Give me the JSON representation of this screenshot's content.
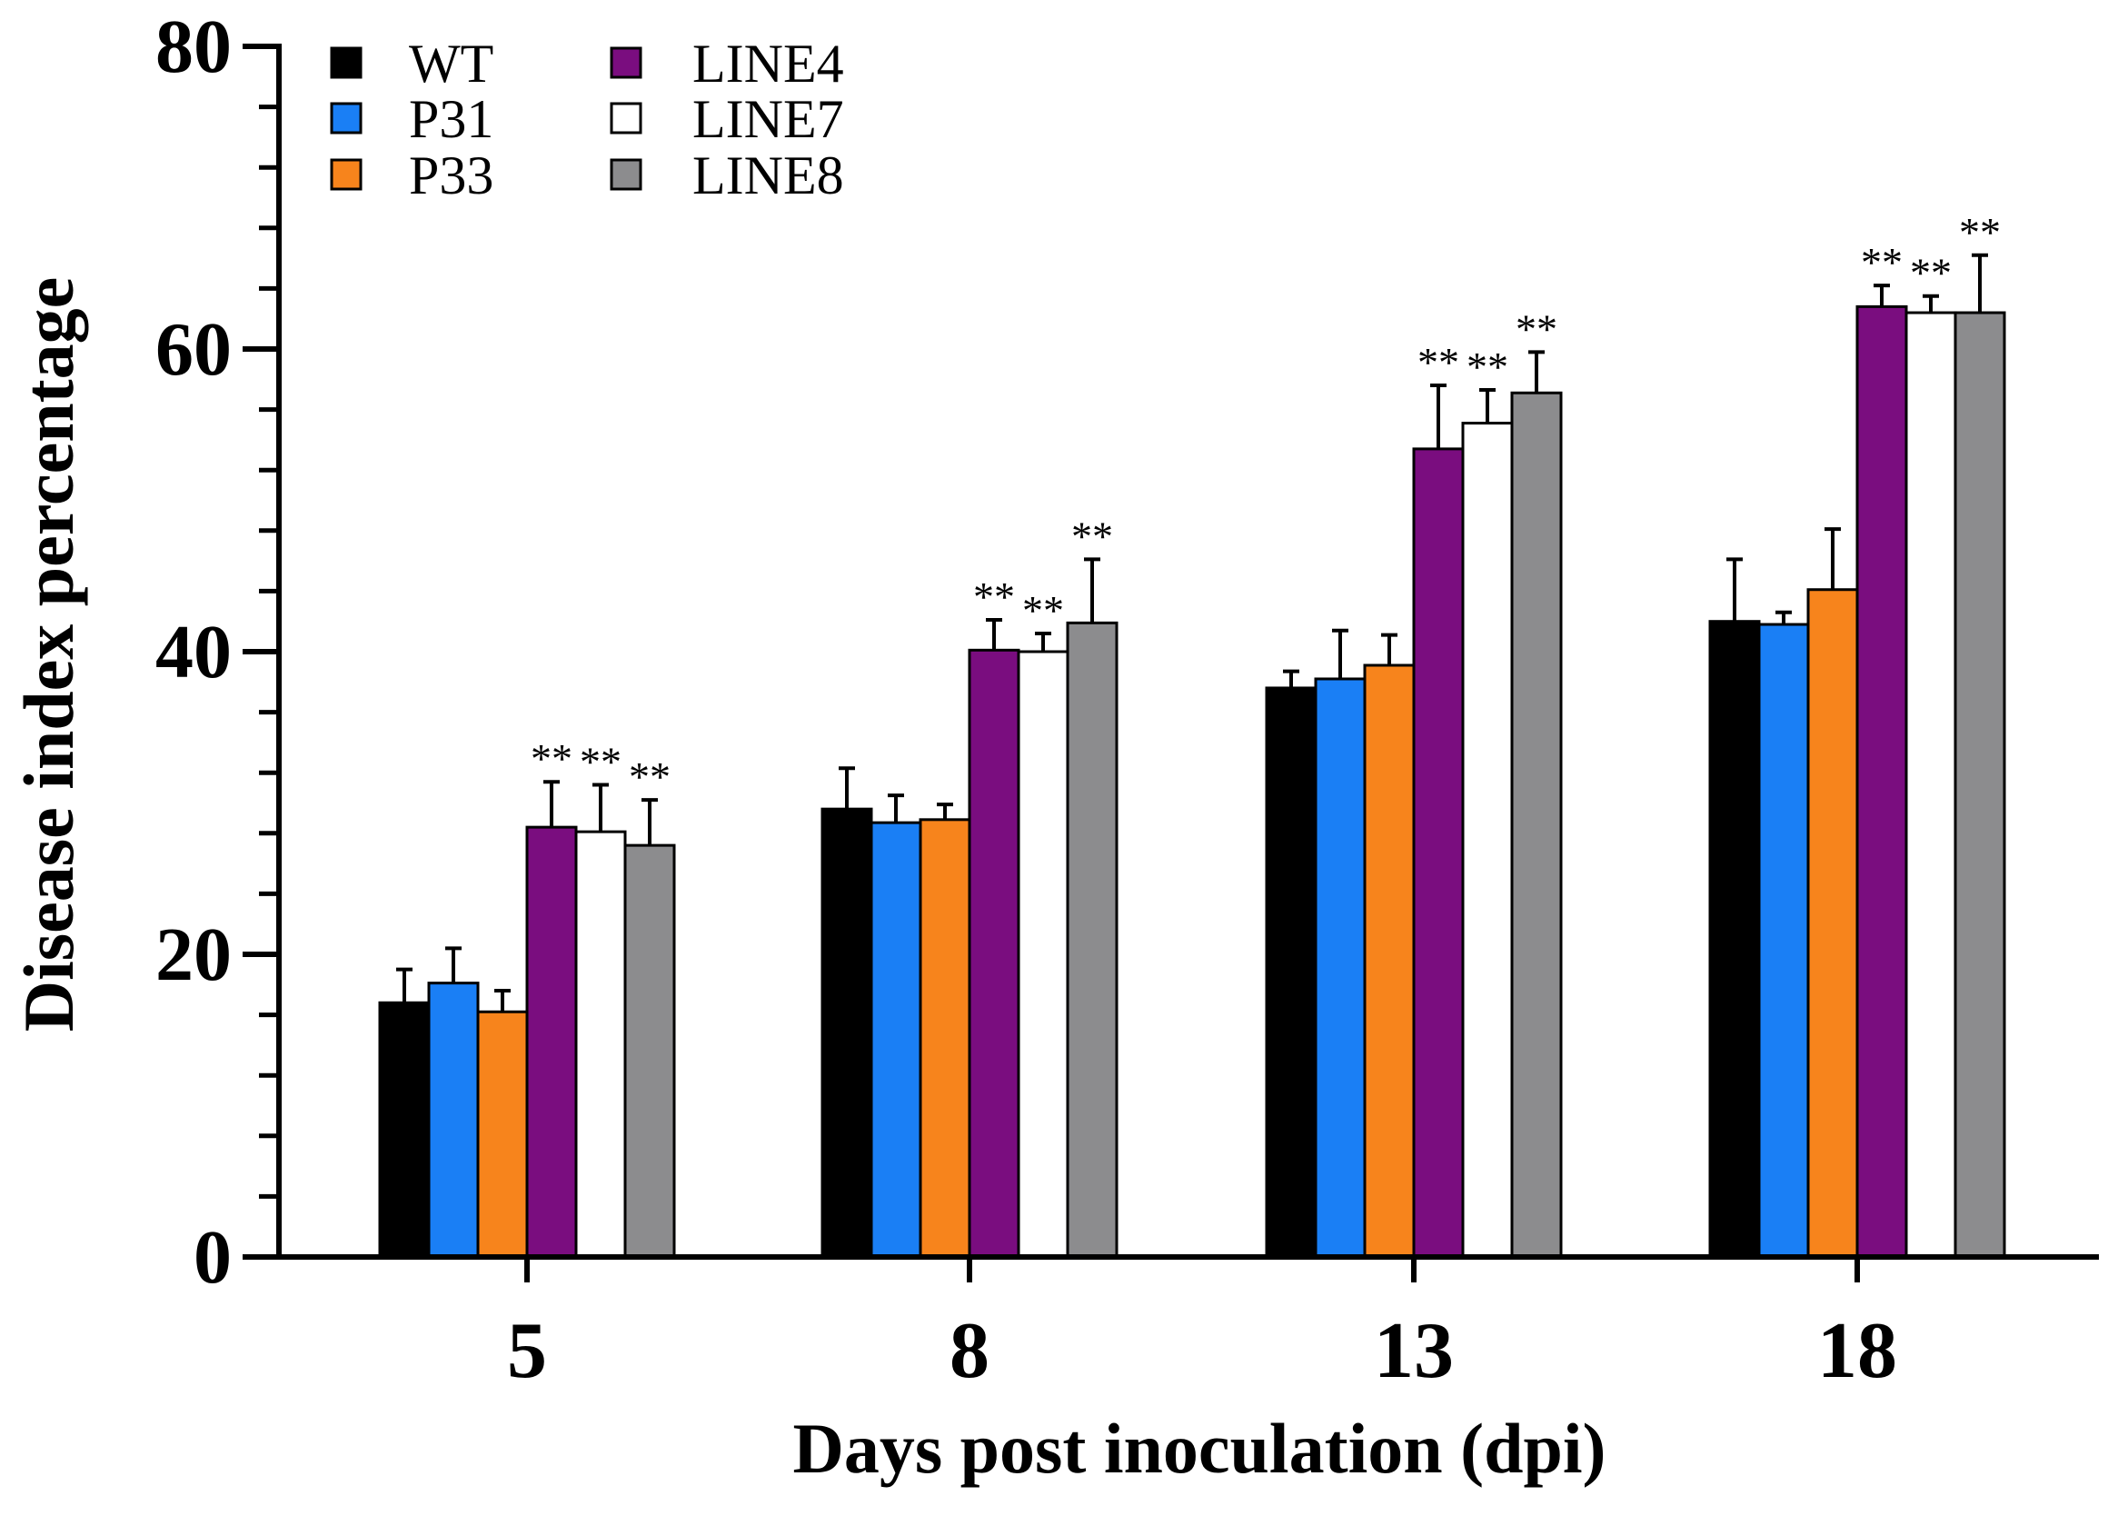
{
  "chart_data": {
    "type": "bar",
    "title": "",
    "xlabel": "Days post inoculation (dpi)",
    "ylabel": "Disease index percentage",
    "ylim": [
      0,
      80
    ],
    "yticks": [
      0,
      20,
      40,
      60,
      80
    ],
    "categories": [
      "5",
      "8",
      "13",
      "18"
    ],
    "series": [
      {
        "name": "WT",
        "color": "#000000",
        "values": [
          16.8,
          29.6,
          37.6,
          42.0
        ],
        "errors": [
          2.2,
          2.7,
          1.1,
          4.1
        ],
        "significance": [
          "",
          "",
          "",
          ""
        ]
      },
      {
        "name": "P31",
        "color": "#1a7ff5",
        "values": [
          18.1,
          28.7,
          38.2,
          41.8
        ],
        "errors": [
          2.3,
          1.8,
          3.2,
          0.8
        ],
        "significance": [
          "",
          "",
          "",
          ""
        ]
      },
      {
        "name": "P33",
        "color": "#f7841c",
        "values": [
          16.2,
          28.9,
          39.1,
          44.1
        ],
        "errors": [
          1.4,
          1.0,
          2.0,
          4.0
        ],
        "significance": [
          "",
          "",
          "",
          ""
        ]
      },
      {
        "name": "LINE4",
        "color": "#7a0d7f",
        "values": [
          28.4,
          40.1,
          53.4,
          62.8
        ],
        "errors": [
          3.0,
          2.0,
          4.2,
          1.4
        ],
        "significance": [
          "**",
          "**",
          "**",
          "**"
        ]
      },
      {
        "name": "LINE7",
        "color": "#ffffff",
        "values": [
          28.1,
          40.0,
          55.1,
          62.4
        ],
        "errors": [
          3.1,
          1.2,
          2.2,
          1.1
        ],
        "significance": [
          "**",
          "**",
          "**",
          "**"
        ]
      },
      {
        "name": "LINE8",
        "color": "#8c8c8e",
        "values": [
          27.2,
          41.9,
          57.1,
          62.4
        ],
        "errors": [
          3.0,
          4.2,
          2.7,
          3.8
        ],
        "significance": [
          "**",
          "**",
          "**",
          "**"
        ]
      }
    ],
    "legend_position": "top-left"
  }
}
